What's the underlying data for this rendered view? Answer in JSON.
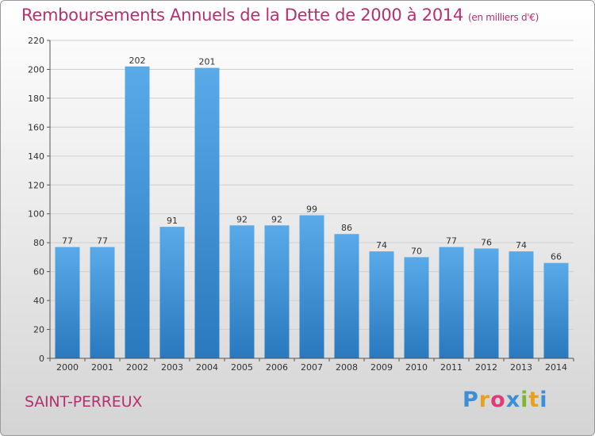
{
  "title": "Remboursements Annuels de la Dette de 2000 à 2014",
  "subtitle": "(en milliers d'€)",
  "location": "SAINT-PERREUX",
  "logo": {
    "text": "Proxiti",
    "letters": [
      "P",
      "r",
      "o",
      "x",
      "i",
      "t",
      "i"
    ],
    "colors": [
      "#3a8fd6",
      "#e8a020",
      "#e03a7a",
      "#3a8fd6",
      "#7cb82f",
      "#e8a020",
      "#3a8fd6"
    ]
  },
  "colors": {
    "bar_top": "#5aaae8",
    "bar_bottom": "#2a78be",
    "title": "#b5306f"
  },
  "chart_data": {
    "type": "bar",
    "title": "Remboursements Annuels de la Dette de 2000 à 2014",
    "subtitle": "(en milliers d'€)",
    "categories": [
      "2000",
      "2001",
      "2002",
      "2003",
      "2004",
      "2005",
      "2006",
      "2007",
      "2008",
      "2009",
      "2010",
      "2011",
      "2012",
      "2013",
      "2014"
    ],
    "values": [
      77,
      77,
      202,
      91,
      201,
      92,
      92,
      99,
      86,
      74,
      70,
      77,
      76,
      74,
      66
    ],
    "ylim": [
      0,
      220
    ],
    "yticks": [
      0,
      20,
      40,
      60,
      80,
      100,
      120,
      140,
      160,
      180,
      200,
      220
    ],
    "grid": true,
    "xlabel": "",
    "ylabel": ""
  }
}
